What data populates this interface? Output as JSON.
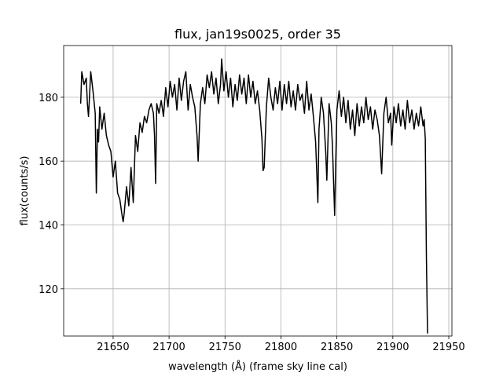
{
  "chart_data": {
    "type": "line",
    "title": "flux, jan19s0025, order 35",
    "x_label": "wavelength (Å) (frame sky line cal)",
    "y_label": "flux(counts/s)",
    "xlim": [
      21605.8,
      21952.8
    ],
    "ylim": [
      105.2,
      196.2
    ],
    "xticks": [
      21650,
      21700,
      21750,
      21800,
      21850,
      21900,
      21950
    ],
    "yticks": [
      120,
      140,
      160,
      180
    ],
    "grid": true,
    "series": [
      {
        "color": "#000000",
        "x": [
          21621,
          21622,
          21624,
          21626,
          21627,
          21628,
          21630,
          21632,
          21634,
          21635,
          21636,
          21637,
          21638,
          21640,
          21642,
          21644,
          21646,
          21648,
          21650,
          21652,
          21654,
          21656,
          21658,
          21659,
          21660,
          21662,
          21664,
          21666,
          21668,
          21670,
          21672,
          21674,
          21676,
          21678,
          21680,
          21682,
          21684,
          21686,
          21687,
          21688,
          21689,
          21691,
          21693,
          21695,
          21697,
          21699,
          21701,
          21703,
          21705,
          21707,
          21709,
          21711,
          21713,
          21715,
          21717,
          21719,
          21721,
          21723,
          21725,
          21726,
          21728,
          21730,
          21732,
          21734,
          21736,
          21738,
          21740,
          21742,
          21744,
          21746,
          21747,
          21749,
          21751,
          21753,
          21755,
          21757,
          21759,
          21761,
          21763,
          21765,
          21767,
          21769,
          21771,
          21773,
          21775,
          21777,
          21779,
          21781,
          21783,
          21784,
          21785,
          21787,
          21789,
          21791,
          21793,
          21795,
          21797,
          21799,
          21801,
          21803,
          21805,
          21807,
          21809,
          21811,
          21813,
          21815,
          21817,
          21819,
          21821,
          21823,
          21825,
          21827,
          21829,
          21831,
          21833,
          21834,
          21836,
          21838,
          21840,
          21841,
          21843,
          21845,
          21846,
          21848,
          21849,
          21850,
          21852,
          21854,
          21856,
          21858,
          21860,
          21862,
          21864,
          21866,
          21868,
          21870,
          21872,
          21874,
          21876,
          21878,
          21880,
          21882,
          21884,
          21886,
          21888,
          21890,
          21892,
          21894,
          21896,
          21898,
          21899,
          21901,
          21903,
          21905,
          21907,
          21909,
          21911,
          21913,
          21915,
          21917,
          21919,
          21921,
          21923,
          21925,
          21927,
          21928,
          21929,
          21930,
          21931
        ],
        "values": [
          178,
          188,
          184,
          186,
          178,
          174,
          188,
          182,
          175,
          150,
          170,
          166,
          177,
          170,
          175,
          168,
          165,
          163,
          155,
          160,
          150,
          148,
          143,
          141,
          144,
          152,
          146,
          158,
          147,
          168,
          163,
          172,
          169,
          174,
          172,
          176,
          178,
          175,
          168,
          153,
          178,
          175,
          179,
          174,
          183,
          177,
          185,
          180,
          184,
          176,
          186,
          179,
          185,
          188,
          176,
          184,
          180,
          177,
          168,
          160,
          178,
          183,
          178,
          187,
          183,
          188,
          181,
          186,
          178,
          184,
          192,
          182,
          188,
          180,
          186,
          177,
          184,
          179,
          187,
          181,
          186,
          178,
          187,
          180,
          185,
          178,
          182,
          176,
          167,
          157,
          158,
          177,
          186,
          180,
          176,
          183,
          178,
          185,
          176,
          184,
          178,
          185,
          177,
          182,
          176,
          184,
          179,
          181,
          175,
          185,
          176,
          181,
          174,
          166,
          147,
          170,
          180,
          175,
          163,
          154,
          178,
          172,
          165,
          143,
          160,
          176,
          182,
          174,
          180,
          172,
          179,
          170,
          176,
          168,
          178,
          171,
          177,
          172,
          180,
          173,
          177,
          170,
          176,
          173,
          168,
          156,
          175,
          180,
          172,
          175,
          165,
          177,
          172,
          178,
          171,
          176,
          170,
          179,
          172,
          176,
          170,
          175,
          171,
          177,
          171,
          173,
          167,
          130,
          106
        ]
      }
    ]
  }
}
